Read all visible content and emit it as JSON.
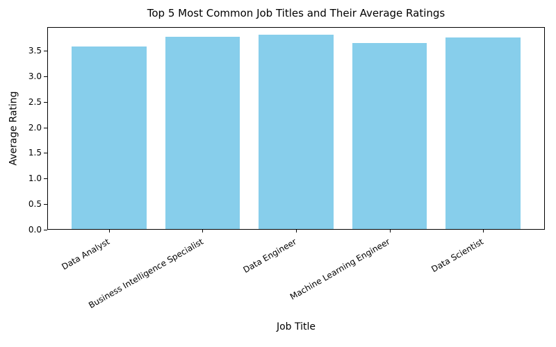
{
  "chart_data": {
    "type": "bar",
    "title": "Top 5 Most Common Job Titles and Their Average Ratings",
    "xlabel": "Job Title",
    "ylabel": "Average Rating",
    "categories": [
      "Data Analyst",
      "Business Intelligence Specialist",
      "Data Engineer",
      "Machine Learning Engineer",
      "Data Scientist"
    ],
    "values": [
      3.57,
      3.76,
      3.8,
      3.64,
      3.74
    ],
    "bar_color": "#87CEEB",
    "ylim": [
      0,
      3.96
    ],
    "yticks": [
      0.0,
      0.5,
      1.0,
      1.5,
      2.0,
      2.5,
      3.0,
      3.5
    ],
    "ytick_labels": [
      "0.0",
      "0.5",
      "1.0",
      "1.5",
      "2.0",
      "2.5",
      "3.0",
      "3.5"
    ],
    "grid": false,
    "legend_position": "none",
    "xtick_label_rotation_deg": 30
  }
}
